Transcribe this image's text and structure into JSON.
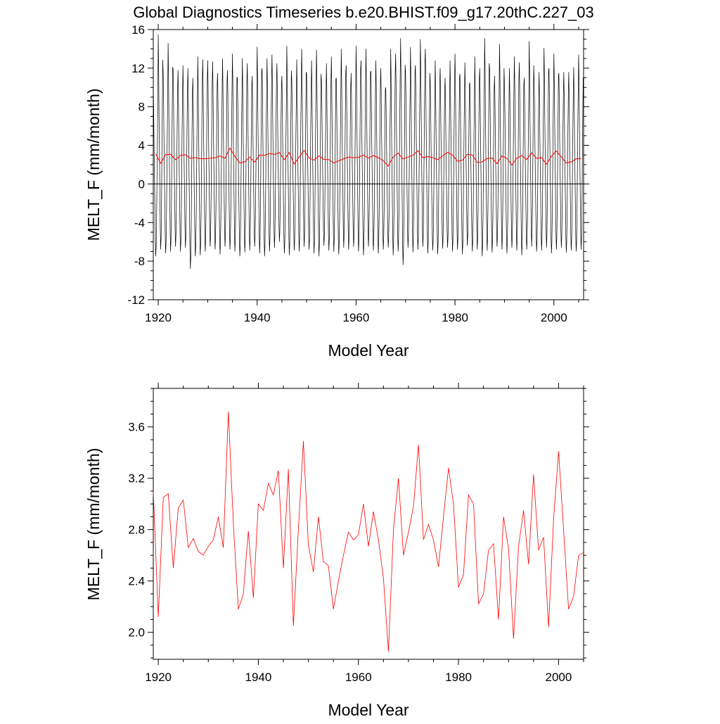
{
  "title": "Global Diagnostics Timeseries b.e20.BHIST.f09_g17.20thC.227_03",
  "chart_data": [
    {
      "type": "line",
      "xlabel": "Model Year",
      "ylabel": "MELT_F (mm/month)",
      "xlim": [
        1919,
        2006
      ],
      "ylim": [
        -12,
        16
      ],
      "xticks": [
        1920,
        1940,
        1960,
        1980,
        2000
      ],
      "xtick_labels": [
        "1920",
        "1940",
        "1960",
        "1980",
        "2000"
      ],
      "yticks": [
        -12,
        -8,
        -4,
        0,
        4,
        8,
        12,
        16
      ],
      "ytick_labels": [
        "-12",
        "-8",
        "-4",
        "0",
        "4",
        "8",
        "12",
        "16"
      ],
      "reference_line": 0,
      "series": [
        {
          "color": "#000000",
          "monthly_cycle": [
            10.0,
            7.5,
            3.5,
            0.5,
            -2.5,
            -5.5,
            -7.0,
            -6.0,
            -3.5,
            0.5,
            4.5,
            8.0
          ],
          "annual_peaks": [
            10.2,
            15.5,
            11.4,
            14.6,
            12.0,
            11.8,
            12.3,
            12.0,
            11.0,
            13.2,
            12.9,
            12.8,
            12.7,
            11.5,
            13.0,
            11.8,
            13.5,
            11.0,
            13.0,
            12.5,
            11.2,
            14.2,
            12.0,
            13.0,
            13.4,
            12.5,
            11.2,
            14.3,
            10.8,
            12.9,
            14.0,
            11.5,
            12.8,
            13.9,
            10.8,
            12.5,
            13.2,
            11.0,
            14.0,
            12.3,
            11.5,
            14.3,
            12.8,
            14.0,
            11.7,
            12.8,
            12.0,
            10.0,
            14.0,
            13.5,
            15.1,
            11.6,
            14.2,
            12.3,
            15.0,
            14.0,
            10.5,
            12.8,
            12.0,
            11.0,
            12.8,
            13.5,
            11.4,
            12.6,
            10.5,
            13.2,
            12.0,
            15.1,
            12.0,
            11.2,
            14.5,
            10.4,
            12.0,
            13.2,
            12.6,
            11.0,
            14.8,
            10.8,
            11.6,
            14.1,
            12.0,
            13.5,
            11.5,
            11.6,
            11.6,
            12.1,
            13.4
          ],
          "annual_troughs": [
            -7.5,
            -6.8,
            -7.2,
            -7.0,
            -6.5,
            -7.0,
            -6.6,
            -8.8,
            -7.5,
            -7.4,
            -7.0,
            -6.5,
            -6.8,
            -7.3,
            -6.5,
            -6.8,
            -7.0,
            -7.5,
            -7.1,
            -6.9,
            -6.5,
            -7.2,
            -7.5,
            -7.0,
            -6.6,
            -6.0,
            -7.2,
            -7.4,
            -6.9,
            -7.0,
            -6.5,
            -6.8,
            -7.2,
            -7.5,
            -6.4,
            -6.9,
            -7.0,
            -7.3,
            -6.6,
            -6.8,
            -6.5,
            -7.0,
            -7.4,
            -6.5,
            -6.9,
            -7.2,
            -6.8,
            -6.6,
            -7.4,
            -7.0,
            -8.4,
            -6.6,
            -7.1,
            -6.8,
            -6.5,
            -7.2,
            -6.9,
            -7.3,
            -6.7,
            -6.6,
            -7.0,
            -6.8,
            -7.3,
            -6.4,
            -7.0,
            -6.8,
            -7.5,
            -6.9,
            -7.1,
            -6.5,
            -6.8,
            -7.2,
            -6.6,
            -6.9,
            -7.4,
            -6.8,
            -6.5,
            -7.0,
            -6.9,
            -6.6,
            -7.2,
            -6.8,
            -6.6,
            -7.1,
            -6.9,
            -7.0,
            -6.8
          ]
        },
        {
          "color": "#ff0000",
          "x": [
            1919,
            1920,
            1921,
            1922,
            1923,
            1924,
            1925,
            1926,
            1927,
            1928,
            1929,
            1930,
            1931,
            1932,
            1933,
            1934,
            1935,
            1936,
            1937,
            1938,
            1939,
            1940,
            1941,
            1942,
            1943,
            1944,
            1945,
            1946,
            1947,
            1948,
            1949,
            1950,
            1951,
            1952,
            1953,
            1954,
            1955,
            1956,
            1957,
            1958,
            1959,
            1960,
            1961,
            1962,
            1963,
            1964,
            1965,
            1966,
            1967,
            1968,
            1969,
            1970,
            1971,
            1972,
            1973,
            1974,
            1975,
            1976,
            1977,
            1978,
            1979,
            1980,
            1981,
            1982,
            1983,
            1984,
            1985,
            1986,
            1987,
            1988,
            1989,
            1990,
            1991,
            1992,
            1993,
            1994,
            1995,
            1996,
            1997,
            1998,
            1999,
            2000,
            2001,
            2002,
            2003,
            2004,
            2005
          ],
          "values": [
            3.1,
            2.12,
            3.05,
            3.08,
            2.5,
            2.97,
            3.03,
            2.66,
            2.73,
            2.63,
            2.6,
            2.67,
            2.72,
            2.9,
            2.66,
            3.72,
            2.85,
            2.18,
            2.3,
            2.79,
            2.27,
            3.0,
            2.95,
            3.16,
            3.07,
            3.26,
            2.5,
            3.27,
            2.05,
            2.8,
            3.49,
            2.68,
            2.47,
            2.9,
            2.55,
            2.52,
            2.18,
            2.4,
            2.6,
            2.78,
            2.72,
            2.76,
            3.0,
            2.67,
            2.94,
            2.72,
            2.42,
            1.85,
            2.8,
            3.2,
            2.6,
            2.78,
            2.98,
            3.46,
            2.72,
            2.84,
            2.72,
            2.51,
            2.9,
            3.28,
            3.0,
            2.35,
            2.45,
            3.07,
            3.0,
            2.22,
            2.3,
            2.64,
            2.69,
            2.1,
            2.9,
            2.65,
            1.95,
            2.67,
            2.95,
            2.53,
            3.23,
            2.64,
            2.74,
            2.04,
            2.88,
            3.41,
            2.8,
            2.18,
            2.28,
            2.6,
            2.62
          ]
        }
      ]
    },
    {
      "type": "line",
      "xlabel": "Model Year",
      "ylabel": "MELT_F (mm/month)",
      "xlim": [
        1919,
        2005
      ],
      "ylim": [
        1.79,
        3.9
      ],
      "xticks": [
        1920,
        1940,
        1960,
        1980,
        2000
      ],
      "xtick_labels": [
        "1920",
        "1940",
        "1960",
        "1980",
        "2000"
      ],
      "yticks": [
        2.0,
        2.4,
        2.8,
        3.2,
        3.6
      ],
      "ytick_labels": [
        "2.0",
        "2.4",
        "2.8",
        "3.2",
        "3.6"
      ],
      "series": [
        {
          "color": "#ff0000",
          "x": [
            1919,
            1920,
            1921,
            1922,
            1923,
            1924,
            1925,
            1926,
            1927,
            1928,
            1929,
            1930,
            1931,
            1932,
            1933,
            1934,
            1935,
            1936,
            1937,
            1938,
            1939,
            1940,
            1941,
            1942,
            1943,
            1944,
            1945,
            1946,
            1947,
            1948,
            1949,
            1950,
            1951,
            1952,
            1953,
            1954,
            1955,
            1956,
            1957,
            1958,
            1959,
            1960,
            1961,
            1962,
            1963,
            1964,
            1965,
            1966,
            1967,
            1968,
            1969,
            1970,
            1971,
            1972,
            1973,
            1974,
            1975,
            1976,
            1977,
            1978,
            1979,
            1980,
            1981,
            1982,
            1983,
            1984,
            1985,
            1986,
            1987,
            1988,
            1989,
            1990,
            1991,
            1992,
            1993,
            1994,
            1995,
            1996,
            1997,
            1998,
            1999,
            2000,
            2001,
            2002,
            2003,
            2004,
            2005
          ],
          "values": [
            3.1,
            2.12,
            3.05,
            3.08,
            2.5,
            2.97,
            3.03,
            2.66,
            2.73,
            2.63,
            2.6,
            2.67,
            2.72,
            2.9,
            2.66,
            3.72,
            2.85,
            2.18,
            2.3,
            2.79,
            2.27,
            3.0,
            2.95,
            3.16,
            3.07,
            3.26,
            2.5,
            3.27,
            2.05,
            2.8,
            3.49,
            2.68,
            2.47,
            2.9,
            2.55,
            2.52,
            2.18,
            2.4,
            2.6,
            2.78,
            2.72,
            2.76,
            3.0,
            2.67,
            2.94,
            2.72,
            2.42,
            1.85,
            2.8,
            3.2,
            2.6,
            2.78,
            2.98,
            3.46,
            2.72,
            2.84,
            2.72,
            2.51,
            2.9,
            3.28,
            3.0,
            2.35,
            2.45,
            3.07,
            3.0,
            2.22,
            2.3,
            2.64,
            2.69,
            2.1,
            2.9,
            2.65,
            1.95,
            2.67,
            2.95,
            2.53,
            3.23,
            2.64,
            2.74,
            2.04,
            2.88,
            3.41,
            2.8,
            2.18,
            2.28,
            2.6,
            2.62
          ]
        }
      ]
    }
  ]
}
